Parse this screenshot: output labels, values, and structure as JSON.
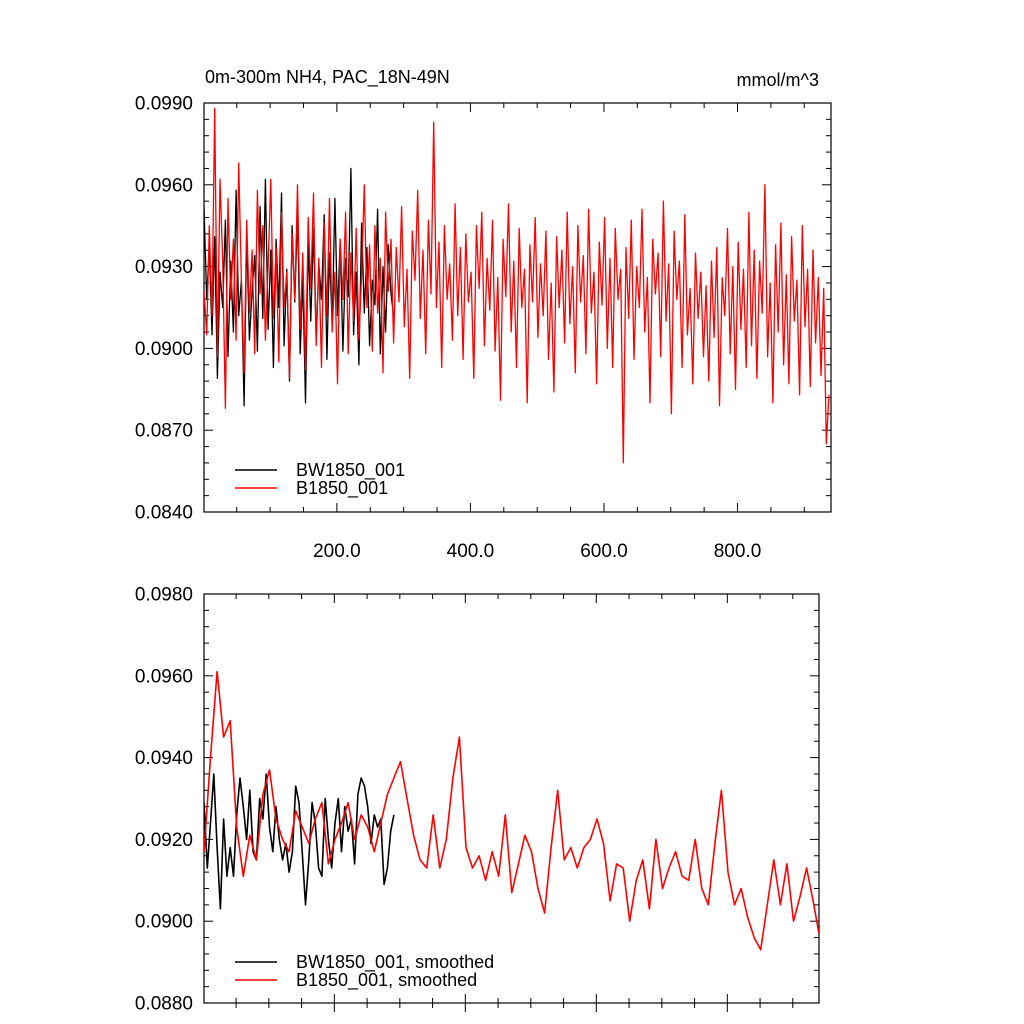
{
  "chart_data": [
    {
      "type": "line",
      "title": "0m-300m NH4, PAC_18N-49N",
      "units": "mmol/m^3",
      "xlim": [
        1,
        940
      ],
      "ylim": [
        0.084,
        0.099
      ],
      "x_ticks": [
        200,
        400,
        600,
        800
      ],
      "x_tick_labels": [
        "200.0",
        "400.0",
        "600.0",
        "800.0"
      ],
      "y_ticks": [
        0.084,
        0.087,
        0.09,
        0.093,
        0.096,
        0.099
      ],
      "y_tick_labels": [
        "0.0840",
        "0.0870",
        "0.0900",
        "0.0930",
        "0.0960",
        "0.0990"
      ],
      "legend_position": "bottom-left",
      "series": [
        {
          "name": "BW1850_001",
          "color": "#000000",
          "x_start": 1,
          "x_step": 4,
          "values": [
            0.0952,
            0.0918,
            0.0938,
            0.0905,
            0.0941,
            0.0889,
            0.0928,
            0.0915,
            0.0947,
            0.0897,
            0.0932,
            0.0906,
            0.0958,
            0.0912,
            0.0925,
            0.0879,
            0.0942,
            0.0903,
            0.0921,
            0.0934,
            0.0899,
            0.0952,
            0.0911,
            0.0962,
            0.0907,
            0.0936,
            0.0893,
            0.094,
            0.0915,
            0.0957,
            0.0901,
            0.0929,
            0.0888,
            0.0945,
            0.0917,
            0.095,
            0.0898,
            0.0926,
            0.088,
            0.0939,
            0.091,
            0.0944,
            0.0903,
            0.0931,
            0.0918,
            0.0949,
            0.0896,
            0.0935,
            0.0908,
            0.0955,
            0.0912,
            0.094,
            0.0899,
            0.0933,
            0.0919,
            0.0966,
            0.0905,
            0.0928,
            0.0894,
            0.0946,
            0.0913,
            0.0937,
            0.0901,
            0.0925,
            0.0916,
            0.0951,
            0.0898,
            0.093,
            0.0906,
            0.0938,
            0.092,
            0.0912
          ]
        },
        {
          "name": "B1850_001",
          "color": "#ff0000",
          "x_start": 1,
          "x_step": 4,
          "values": [
            0.0921,
            0.0905,
            0.0945,
            0.0912,
            0.0988,
            0.0897,
            0.0962,
            0.0932,
            0.0878,
            0.0955,
            0.0918,
            0.094,
            0.0903,
            0.0968,
            0.0925,
            0.0891,
            0.0947,
            0.0913,
            0.0936,
            0.0898,
            0.0958,
            0.092,
            0.0945,
            0.0903,
            0.093,
            0.0962,
            0.0911,
            0.0937,
            0.0895,
            0.095,
            0.0915,
            0.0928,
            0.0889,
            0.0942,
            0.0918,
            0.096,
            0.0907,
            0.0935,
            0.0892,
            0.0948,
            0.0922,
            0.0957,
            0.0901,
            0.0933,
            0.0893,
            0.0946,
            0.0912,
            0.0955,
            0.0906,
            0.0928,
            0.0887,
            0.094,
            0.0918,
            0.095,
            0.0898,
            0.0935,
            0.091,
            0.0944,
            0.0903,
            0.0927,
            0.096,
            0.0915,
            0.0938,
            0.0899,
            0.0945,
            0.0913,
            0.0933,
            0.0891,
            0.095,
            0.0921,
            0.094,
            0.0902,
            0.0937,
            0.0917,
            0.0952,
            0.0908,
            0.0929,
            0.0889,
            0.0943,
            0.0925,
            0.0958,
            0.0911,
            0.0936,
            0.0898,
            0.0947,
            0.092,
            0.0983,
            0.0915,
            0.0939,
            0.0893,
            0.0945,
            0.0918,
            0.0931,
            0.0903,
            0.0953,
            0.0912,
            0.0937,
            0.0896,
            0.0942,
            0.0917,
            0.0928,
            0.0889,
            0.0945,
            0.0922,
            0.095,
            0.0901,
            0.0933,
            0.0914,
            0.0947,
            0.0899,
            0.0926,
            0.0881,
            0.094,
            0.0919,
            0.0953,
            0.0906,
            0.0932,
            0.0893,
            0.0944,
            0.0915,
            0.0929,
            0.088,
            0.0938,
            0.0917,
            0.0948,
            0.0904,
            0.0931,
            0.0912,
            0.0943,
            0.0896,
            0.0924,
            0.0884,
            0.0941,
            0.0915,
            0.0936,
            0.0902,
            0.095,
            0.0909,
            0.093,
            0.0891,
            0.0945,
            0.0917,
            0.0934,
            0.0898,
            0.0951,
            0.0913,
            0.0928,
            0.0887,
            0.0939,
            0.0916,
            0.0948,
            0.09,
            0.0933,
            0.0893,
            0.0944,
            0.0918,
            0.0929,
            0.0858,
            0.0937,
            0.0911,
            0.0947,
            0.0896,
            0.093,
            0.0915,
            0.0951,
            0.0906,
            0.0926,
            0.088,
            0.094,
            0.092,
            0.0935,
            0.0897,
            0.0954,
            0.091,
            0.0931,
            0.0876,
            0.0943,
            0.0918,
            0.0932,
            0.0893,
            0.0949,
            0.0905,
            0.0922,
            0.0887,
            0.0935,
            0.0911,
            0.0928,
            0.0897,
            0.0923,
            0.0888,
            0.0932,
            0.0904,
            0.0937,
            0.0879,
            0.0926,
            0.0912,
            0.0944,
            0.0898,
            0.093,
            0.0885,
            0.0939,
            0.0907,
            0.0929,
            0.0893,
            0.095,
            0.0901,
            0.0936,
            0.0889,
            0.0932,
            0.0913,
            0.096,
            0.0897,
            0.0924,
            0.088,
            0.0938,
            0.0906,
            0.0946,
            0.0894,
            0.0927,
            0.0887,
            0.0941,
            0.091,
            0.0925,
            0.0883,
            0.0945,
            0.0908,
            0.0929,
            0.0886,
            0.0936,
            0.0902,
            0.0926,
            0.089,
            0.0922,
            0.0865,
            0.0883
          ]
        }
      ]
    },
    {
      "type": "line",
      "xlim": [
        1,
        940
      ],
      "ylim": [
        0.088,
        0.098
      ],
      "y_ticks": [
        0.088,
        0.09,
        0.092,
        0.094,
        0.096,
        0.098
      ],
      "y_tick_labels": [
        "0.0880",
        "0.0900",
        "0.0920",
        "0.0940",
        "0.0960",
        "0.0980"
      ],
      "legend_position": "bottom-left",
      "series": [
        {
          "name": "BW1850_001, smoothed",
          "color": "#000000",
          "x": [
            1,
            6,
            11,
            16,
            21,
            26,
            31,
            36,
            41,
            46,
            51,
            56,
            61,
            66,
            71,
            76,
            81,
            86,
            91,
            96,
            101,
            106,
            111,
            116,
            121,
            126,
            131,
            136,
            141,
            146,
            151,
            156,
            161,
            166,
            171,
            176,
            181,
            186,
            191,
            196,
            201,
            206,
            211,
            216,
            221,
            226,
            231,
            236,
            241,
            246,
            251,
            256,
            261,
            266,
            271,
            276,
            281,
            286,
            291
          ],
          "values": [
            0.0929,
            0.0913,
            0.0924,
            0.0936,
            0.0918,
            0.0903,
            0.0925,
            0.0911,
            0.0918,
            0.0911,
            0.0926,
            0.0935,
            0.0928,
            0.092,
            0.0932,
            0.0917,
            0.0915,
            0.093,
            0.0925,
            0.0936,
            0.0923,
            0.0917,
            0.0928,
            0.092,
            0.0915,
            0.0919,
            0.0912,
            0.0917,
            0.0933,
            0.0929,
            0.0917,
            0.0904,
            0.0915,
            0.0929,
            0.0924,
            0.0913,
            0.0911,
            0.093,
            0.092,
            0.0913,
            0.0924,
            0.093,
            0.0917,
            0.0928,
            0.0922,
            0.0925,
            0.0914,
            0.0931,
            0.0935,
            0.0933,
            0.0928,
            0.0919,
            0.0926,
            0.0923,
            0.0925,
            0.0909,
            0.0913,
            0.0922,
            0.0926
          ]
        },
        {
          "name": "B1850_001, smoothed",
          "color": "#ff0000",
          "x": [
            1,
            11,
            21,
            31,
            41,
            51,
            61,
            71,
            81,
            91,
            101,
            111,
            121,
            131,
            141,
            151,
            161,
            171,
            181,
            191,
            201,
            211,
            221,
            231,
            241,
            251,
            261,
            271,
            281,
            291,
            301,
            311,
            321,
            331,
            341,
            351,
            361,
            371,
            381,
            391,
            401,
            411,
            421,
            431,
            441,
            451,
            461,
            471,
            481,
            491,
            501,
            511,
            521,
            531,
            541,
            551,
            561,
            571,
            581,
            591,
            601,
            611,
            621,
            631,
            641,
            651,
            661,
            671,
            681,
            691,
            701,
            711,
            721,
            731,
            741,
            751,
            761,
            771,
            781,
            791,
            801,
            811,
            821,
            831,
            841,
            851,
            861,
            871,
            881,
            891,
            901,
            911,
            921,
            931,
            940
          ],
          "values": [
            0.0917,
            0.094,
            0.0961,
            0.0945,
            0.0949,
            0.0923,
            0.0911,
            0.0921,
            0.0915,
            0.0931,
            0.0937,
            0.0925,
            0.092,
            0.0917,
            0.0927,
            0.0923,
            0.0919,
            0.0925,
            0.0929,
            0.0914,
            0.092,
            0.0924,
            0.0929,
            0.092,
            0.0926,
            0.0923,
            0.0917,
            0.0924,
            0.0931,
            0.0935,
            0.0939,
            0.093,
            0.0921,
            0.0915,
            0.0913,
            0.0926,
            0.0913,
            0.092,
            0.0935,
            0.0945,
            0.0918,
            0.0913,
            0.0916,
            0.091,
            0.0917,
            0.0911,
            0.0926,
            0.0907,
            0.0914,
            0.0921,
            0.0917,
            0.0908,
            0.0902,
            0.0918,
            0.0932,
            0.0915,
            0.0918,
            0.0913,
            0.0918,
            0.092,
            0.0925,
            0.0919,
            0.0905,
            0.0914,
            0.0913,
            0.09,
            0.091,
            0.0915,
            0.0903,
            0.092,
            0.0908,
            0.0913,
            0.0917,
            0.0911,
            0.091,
            0.092,
            0.0908,
            0.0904,
            0.0919,
            0.0932,
            0.0912,
            0.0904,
            0.0908,
            0.0901,
            0.0896,
            0.0893,
            0.0904,
            0.0915,
            0.0904,
            0.0914,
            0.09,
            0.0906,
            0.0913,
            0.0905,
            0.0897
          ]
        }
      ]
    }
  ]
}
